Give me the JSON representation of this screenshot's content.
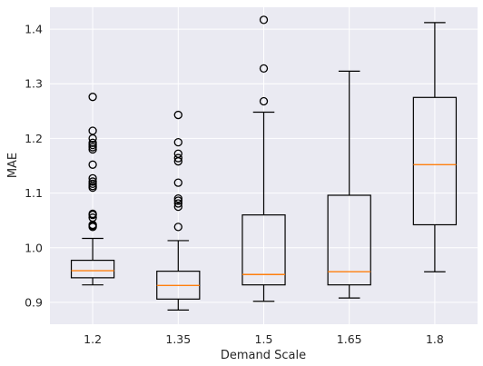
{
  "chart_data": {
    "type": "boxplot",
    "title": "",
    "xlabel": "Demand Scale",
    "ylabel": "MAE",
    "categories": [
      "1.2",
      "1.35",
      "1.5",
      "1.65",
      "1.8"
    ],
    "ylim": [
      0.86,
      1.44
    ],
    "yticks": [
      0.9,
      1.0,
      1.1,
      1.2,
      1.3,
      1.4
    ],
    "ytick_labels": [
      "0.9",
      "1.0",
      "1.1",
      "1.2",
      "1.3",
      "1.4"
    ],
    "grid": true,
    "boxes": [
      {
        "category": "1.2",
        "whisker_low": 0.932,
        "q1": 0.945,
        "median": 0.958,
        "q3": 0.977,
        "whisker_high": 1.017,
        "outliers": [
          1.038,
          1.04,
          1.042,
          1.055,
          1.06,
          1.062,
          1.11,
          1.113,
          1.117,
          1.121,
          1.127,
          1.152,
          1.18,
          1.184,
          1.188,
          1.192,
          1.2,
          1.214,
          1.276
        ]
      },
      {
        "category": "1.35",
        "whisker_low": 0.886,
        "q1": 0.906,
        "median": 0.931,
        "q3": 0.957,
        "whisker_high": 1.013,
        "outliers": [
          1.038,
          1.075,
          1.081,
          1.086,
          1.09,
          1.119,
          1.158,
          1.164,
          1.172,
          1.193,
          1.243
        ]
      },
      {
        "category": "1.5",
        "whisker_low": 0.902,
        "q1": 0.932,
        "median": 0.951,
        "q3": 1.06,
        "whisker_high": 1.248,
        "outliers": [
          1.268,
          1.328,
          1.417
        ]
      },
      {
        "category": "1.65",
        "whisker_low": 0.908,
        "q1": 0.932,
        "median": 0.956,
        "q3": 1.096,
        "whisker_high": 1.323,
        "outliers": []
      },
      {
        "category": "1.8",
        "whisker_low": 0.956,
        "q1": 1.042,
        "median": 1.152,
        "q3": 1.275,
        "whisker_high": 1.412,
        "outliers": []
      }
    ],
    "colors": {
      "plot_background": "#eaeaf2",
      "grid": "#ffffff",
      "box_edge": "#000000",
      "median": "#ff7f0e",
      "outlier_edge": "#000000"
    }
  }
}
